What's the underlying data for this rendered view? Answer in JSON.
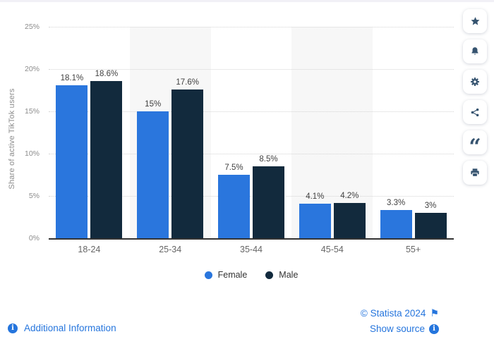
{
  "page": {
    "background": "#ffffff",
    "top_strip_color": "#f1f0f6"
  },
  "chart_data": {
    "type": "bar",
    "title": "",
    "categories": [
      "18-24",
      "25-34",
      "35-44",
      "45-54",
      "55+"
    ],
    "series": [
      {
        "name": "Female",
        "color": "#2a76dd",
        "values": [
          18.1,
          15,
          7.5,
          4.1,
          3.3
        ],
        "labels": [
          "18.1%",
          "15%",
          "7.5%",
          "4.1%",
          "3.3%"
        ]
      },
      {
        "name": "Male",
        "color": "#122a3d",
        "values": [
          18.6,
          17.6,
          8.5,
          4.2,
          3
        ],
        "labels": [
          "18.6%",
          "17.6%",
          "8.5%",
          "4.2%",
          "3%"
        ]
      }
    ],
    "xlabel": "",
    "ylabel": "Share of active TikTok users",
    "ylim": [
      0,
      25
    ],
    "yticks": [
      "25%",
      "20%",
      "15%",
      "10%",
      "5%",
      "0%"
    ],
    "grid": "horizontal-dotted",
    "band_color": "#f7f7f7",
    "banded_categories": [
      "25-34",
      "45-54"
    ],
    "legend_position": "bottom"
  },
  "sidebar": {
    "icon_color": "#35536f",
    "buttons": [
      {
        "name": "favorite",
        "icon": "star-icon"
      },
      {
        "name": "alerts",
        "icon": "bell-icon"
      },
      {
        "name": "settings",
        "icon": "gear-icon"
      },
      {
        "name": "share",
        "icon": "share-icon"
      },
      {
        "name": "cite",
        "icon": "quote-icon"
      },
      {
        "name": "print",
        "icon": "printer-icon"
      }
    ]
  },
  "footer": {
    "additional_information": "Additional Information",
    "copyright": "© Statista 2024",
    "show_source": "Show source",
    "link_color": "#2575dd"
  },
  "icons": {
    "flag": "⚑",
    "quote_glyph": "“",
    "info_glyph": "i"
  }
}
